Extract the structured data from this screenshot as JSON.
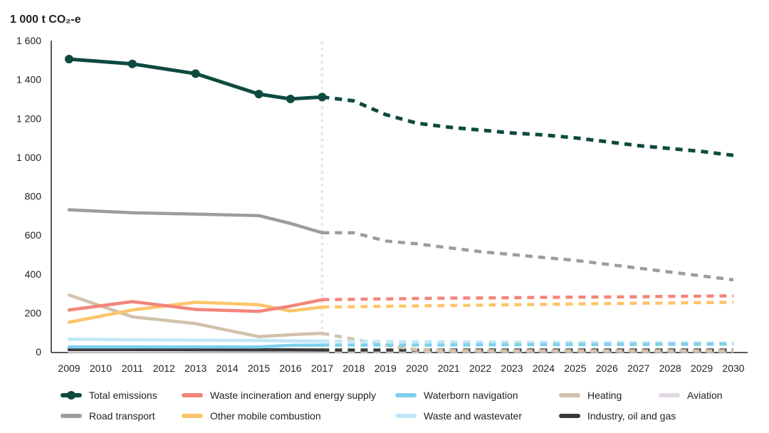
{
  "chart_data": {
    "type": "line",
    "ylabel": "1 000 t CO₂-e",
    "ylim": [
      0,
      1600
    ],
    "yticks": [
      0,
      200,
      400,
      600,
      800,
      1000,
      1200,
      1400,
      1600
    ],
    "ytick_labels": [
      "0",
      "200",
      "400",
      "600",
      "800",
      "1 000",
      "1 200",
      "1 400",
      "1 600"
    ],
    "x": [
      2009,
      2010,
      2011,
      2012,
      2013,
      2014,
      2015,
      2016,
      2017,
      2018,
      2019,
      2020,
      2021,
      2022,
      2023,
      2024,
      2025,
      2026,
      2027,
      2028,
      2029,
      2030
    ],
    "projection_start": 2017,
    "grid": false,
    "legend_position": "bottom",
    "series": [
      {
        "name": "Total emissions",
        "color": "#0d4a3f",
        "markers": true,
        "historical": {
          "x": [
            2009,
            2011,
            2013,
            2015,
            2016,
            2017
          ],
          "y": [
            1505,
            1480,
            1430,
            1325,
            1300,
            1310
          ]
        },
        "projection": {
          "x": [
            2017,
            2018,
            2019,
            2020,
            2021,
            2022,
            2023,
            2024,
            2025,
            2026,
            2027,
            2028,
            2029,
            2030
          ],
          "y": [
            1310,
            1290,
            1220,
            1175,
            1155,
            1140,
            1125,
            1115,
            1100,
            1080,
            1060,
            1045,
            1030,
            1010
          ]
        }
      },
      {
        "name": "Road transport",
        "color": "#9c9c9e",
        "historical": {
          "x": [
            2009,
            2011,
            2013,
            2015,
            2016,
            2017
          ],
          "y": [
            730,
            715,
            708,
            700,
            660,
            612
          ]
        },
        "projection": {
          "x": [
            2017,
            2018,
            2019,
            2020,
            2021,
            2022,
            2023,
            2024,
            2025,
            2026,
            2027,
            2028,
            2029,
            2030
          ],
          "y": [
            612,
            612,
            570,
            555,
            535,
            515,
            500,
            485,
            470,
            450,
            430,
            410,
            390,
            370
          ]
        }
      },
      {
        "name": "Waste incineration and energy supply",
        "color": "#f2857a",
        "historical": {
          "x": [
            2009,
            2011,
            2013,
            2015,
            2016,
            2017
          ],
          "y": [
            215,
            258,
            218,
            208,
            235,
            268
          ]
        },
        "projection": {
          "x": [
            2017,
            2018,
            2019,
            2020,
            2021,
            2022,
            2023,
            2024,
            2025,
            2026,
            2027,
            2028,
            2029,
            2030
          ],
          "y": [
            268,
            270,
            272,
            274,
            276,
            277,
            278,
            280,
            281,
            282,
            283,
            285,
            286,
            288
          ]
        }
      },
      {
        "name": "Other mobile combustion",
        "color": "#fcc56a",
        "historical": {
          "x": [
            2009,
            2011,
            2013,
            2015,
            2016,
            2017
          ],
          "y": [
            152,
            215,
            255,
            242,
            210,
            230
          ]
        },
        "projection": {
          "x": [
            2017,
            2018,
            2019,
            2020,
            2021,
            2022,
            2023,
            2024,
            2025,
            2026,
            2027,
            2028,
            2029,
            2030
          ],
          "y": [
            230,
            232,
            234,
            236,
            238,
            240,
            242,
            244,
            246,
            248,
            250,
            251,
            253,
            255
          ]
        }
      },
      {
        "name": "Waterborn navigation",
        "color": "#7fd0ec",
        "historical": {
          "x": [
            2009,
            2011,
            2013,
            2015,
            2016,
            2017
          ],
          "y": [
            25,
            25,
            25,
            25,
            33,
            35
          ]
        },
        "projection": {
          "x": [
            2017,
            2018,
            2019,
            2020,
            2021,
            2022,
            2023,
            2024,
            2025,
            2026,
            2027,
            2028,
            2029,
            2030
          ],
          "y": [
            35,
            35,
            35,
            35,
            35,
            36,
            36,
            37,
            37,
            38,
            38,
            39,
            39,
            40
          ]
        }
      },
      {
        "name": "Waste and wastevater",
        "color": "#bfe7f6",
        "historical": {
          "x": [
            2009,
            2011,
            2013,
            2015,
            2016,
            2017
          ],
          "y": [
            65,
            62,
            60,
            58,
            56,
            55
          ]
        },
        "projection": {
          "x": [
            2017,
            2018,
            2019,
            2020,
            2021,
            2022,
            2023,
            2024,
            2025,
            2026,
            2027,
            2028,
            2029,
            2030
          ],
          "y": [
            55,
            54,
            53,
            52,
            51,
            50,
            49,
            48,
            48,
            47,
            47,
            46,
            46,
            45
          ]
        }
      },
      {
        "name": "Heating",
        "color": "#d2c2ac",
        "historical": {
          "x": [
            2009,
            2011,
            2013,
            2015,
            2016,
            2017
          ],
          "y": [
            292,
            180,
            145,
            78,
            88,
            95
          ]
        },
        "projection": {
          "x": [
            2017,
            2018,
            2019,
            2020,
            2021,
            2022,
            2023,
            2024,
            2025,
            2026,
            2027,
            2028,
            2029,
            2030
          ],
          "y": [
            95,
            65,
            35,
            10,
            6,
            5,
            5,
            5,
            5,
            5,
            5,
            5,
            5,
            5
          ]
        }
      },
      {
        "name": "Industry, oil and gas",
        "color": "#3a3a3a",
        "historical": {
          "x": [
            2009,
            2011,
            2013,
            2015,
            2016,
            2017
          ],
          "y": [
            12,
            12,
            11,
            10,
            10,
            9
          ]
        },
        "projection": {
          "x": [
            2017,
            2018,
            2019,
            2020,
            2021,
            2022,
            2023,
            2024,
            2025,
            2026,
            2027,
            2028,
            2029,
            2030
          ],
          "y": [
            9,
            9,
            9,
            9,
            9,
            9,
            9,
            9,
            9,
            9,
            9,
            9,
            9,
            9
          ]
        }
      },
      {
        "name": "Aviation",
        "color": "#e0d8e4",
        "historical": {
          "x": [
            2009,
            2011,
            2013,
            2015,
            2016,
            2017
          ],
          "y": [
            3,
            3,
            3,
            3,
            3,
            3
          ]
        },
        "projection": {
          "x": [
            2017,
            2018,
            2019,
            2020,
            2021,
            2022,
            2023,
            2024,
            2025,
            2026,
            2027,
            2028,
            2029,
            2030
          ],
          "y": [
            3,
            3,
            3,
            3,
            3,
            3,
            3,
            3,
            3,
            3,
            3,
            3,
            3,
            3
          ]
        }
      }
    ],
    "legend_order": [
      "Total emissions",
      "Waste incineration and energy supply",
      "Waterborn navigation",
      "Heating",
      "Aviation",
      "Road transport",
      "Other mobile combustion",
      "Waste and wastevater",
      "Industry, oil and gas"
    ]
  }
}
